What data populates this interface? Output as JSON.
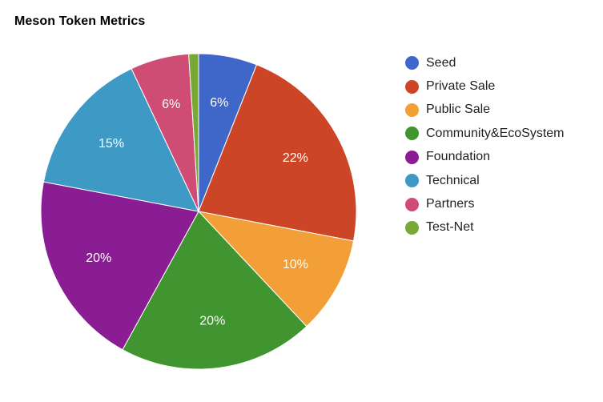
{
  "chart_data": {
    "type": "pie",
    "title": "Meson Token Metrics",
    "slices": [
      {
        "name": "Seed",
        "value": 6,
        "label": "6%",
        "color": "#3f67c9"
      },
      {
        "name": "Private Sale",
        "value": 22,
        "label": "22%",
        "color": "#cc4527"
      },
      {
        "name": "Public Sale",
        "value": 10,
        "label": "10%",
        "color": "#f29f38"
      },
      {
        "name": "Community&EcoSystem",
        "value": 20,
        "label": "20%",
        "color": "#419531"
      },
      {
        "name": "Foundation",
        "value": 20,
        "label": "20%",
        "color": "#8b1d94"
      },
      {
        "name": "Technical",
        "value": 15,
        "label": "15%",
        "color": "#3f99c5"
      },
      {
        "name": "Partners",
        "value": 6,
        "label": "6%",
        "color": "#cf4c74"
      },
      {
        "name": "Test-Net",
        "value": 1,
        "label": "",
        "color": "#78a935"
      }
    ],
    "legend_position": "right"
  }
}
